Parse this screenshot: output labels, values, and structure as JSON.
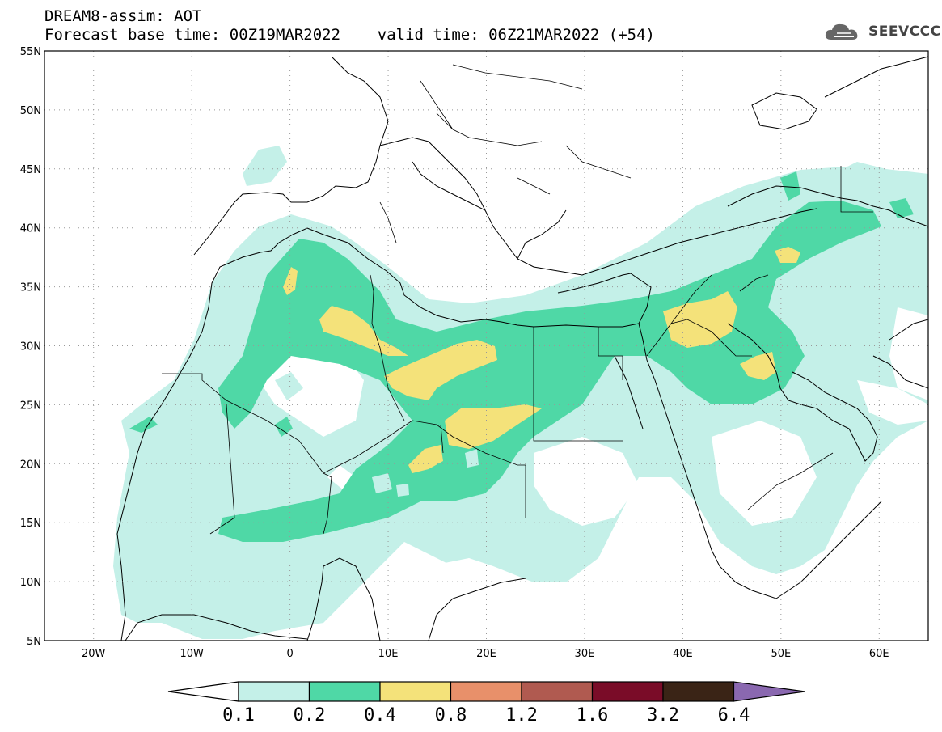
{
  "header": {
    "line1": "DREAM8-assim: AOT",
    "line2": "Forecast base time: 00Z19MAR2022    valid time: 06Z21MAR2022 (+54)"
  },
  "logo": {
    "text": "SEEVCCC",
    "icon": "cloud-icon"
  },
  "map": {
    "projection": "lat-lon",
    "lon_range": [
      -25,
      65
    ],
    "lat_range": [
      5,
      55
    ],
    "lat_labels": [
      "55N",
      "50N",
      "45N",
      "40N",
      "35N",
      "30N",
      "25N",
      "20N",
      "15N",
      "10N",
      "5N"
    ],
    "lon_labels": [
      "20W",
      "10W",
      "0",
      "10E",
      "20E",
      "30E",
      "40E",
      "50E",
      "60E"
    ],
    "grid": true,
    "grid_style": "dotted",
    "field": "AOT"
  },
  "colorbar": {
    "levels": [
      "0.1",
      "0.2",
      "0.4",
      "0.8",
      "1.2",
      "1.6",
      "3.2",
      "6.4"
    ],
    "colors": [
      "#ffffff",
      "#c4f0e8",
      "#4fd8a6",
      "#f4e27a",
      "#e8906a",
      "#b05a50",
      "#7a0c28",
      "#3a2416",
      "#8a68b0"
    ]
  },
  "colors": {
    "frame": "#000000",
    "coast": "#000000",
    "aot_low": "#c4f0e8",
    "aot_mid": "#4fd8a6",
    "aot_high": "#f4e27a"
  }
}
